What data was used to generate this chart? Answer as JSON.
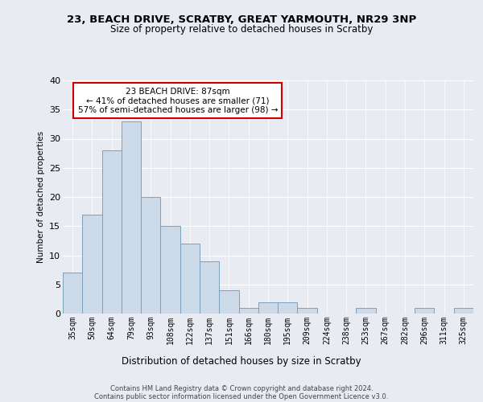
{
  "title": "23, BEACH DRIVE, SCRATBY, GREAT YARMOUTH, NR29 3NP",
  "subtitle": "Size of property relative to detached houses in Scratby",
  "xlabel": "Distribution of detached houses by size in Scratby",
  "ylabel": "Number of detached properties",
  "bar_labels": [
    "35sqm",
    "50sqm",
    "64sqm",
    "79sqm",
    "93sqm",
    "108sqm",
    "122sqm",
    "137sqm",
    "151sqm",
    "166sqm",
    "180sqm",
    "195sqm",
    "209sqm",
    "224sqm",
    "238sqm",
    "253sqm",
    "267sqm",
    "282sqm",
    "296sqm",
    "311sqm",
    "325sqm"
  ],
  "bar_values": [
    7,
    17,
    28,
    33,
    20,
    15,
    12,
    9,
    4,
    1,
    2,
    2,
    1,
    0,
    0,
    1,
    0,
    0,
    1,
    0,
    1
  ],
  "bar_color": "#ccd9e8",
  "bar_edge_color": "#7aa0bb",
  "background_color": "#e8ecf2",
  "grid_color": "#ffffff",
  "ylim": [
    0,
    40
  ],
  "yticks": [
    0,
    5,
    10,
    15,
    20,
    25,
    30,
    35,
    40
  ],
  "annotation_box_text": "23 BEACH DRIVE: 87sqm\n← 41% of detached houses are smaller (71)\n57% of semi-detached houses are larger (98) →",
  "annotation_box_color": "#ffffff",
  "annotation_box_edge_color": "#cc0000",
  "footer_line1": "Contains HM Land Registry data © Crown copyright and database right 2024.",
  "footer_line2": "Contains public sector information licensed under the Open Government Licence v3.0."
}
